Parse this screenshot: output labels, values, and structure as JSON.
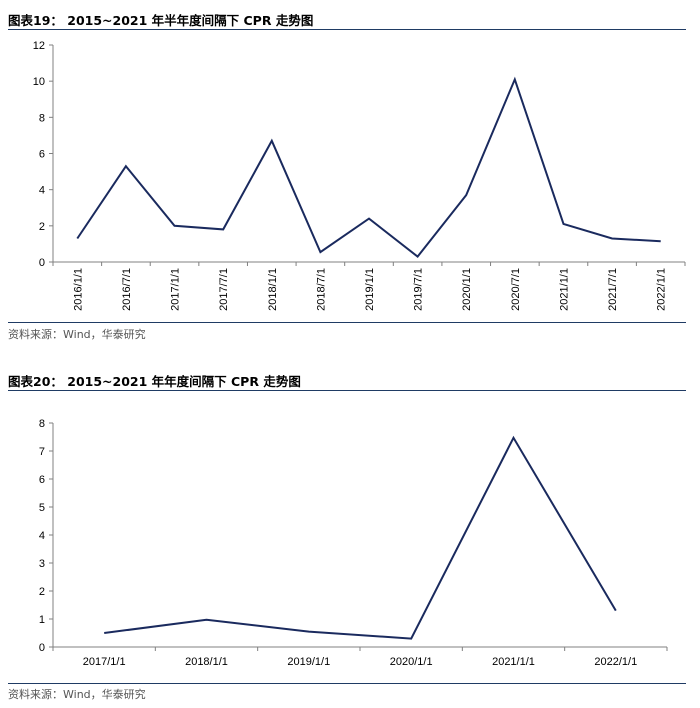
{
  "charts": [
    {
      "title": "图表19：  2015~2021 年半年度间隔下 CPR 走势图",
      "source": "资料来源：Wind，华泰研究"
    },
    {
      "title": "图表20：  2015~2021 年年度间隔下 CPR 走势图",
      "source": "资料来源：Wind，华泰研究"
    }
  ],
  "chart_data": [
    {
      "type": "line",
      "title": "图表19：  2015~2021 年半年度间隔下 CPR 走势图",
      "categories": [
        "2016/1/1",
        "2016/7/1",
        "2017/1/1",
        "2017/7/1",
        "2018/1/1",
        "2018/7/1",
        "2019/1/1",
        "2019/7/1",
        "2020/1/1",
        "2020/7/1",
        "2021/1/1",
        "2021/7/1",
        "2022/1/1"
      ],
      "series": [
        {
          "values": [
            1.3,
            5.3,
            2.0,
            1.8,
            6.7,
            0.55,
            2.4,
            0.3,
            3.7,
            10.1,
            2.1,
            1.3,
            1.15
          ]
        }
      ],
      "ylim": [
        0,
        12
      ],
      "yticks": [
        "0",
        "2",
        "4",
        "6",
        "8",
        "10",
        "12"
      ],
      "grid": false,
      "line_color": "#1a2a5e"
    },
    {
      "type": "line",
      "title": "图表20：  2015~2021 年年度间隔下 CPR 走势图",
      "categories": [
        "2017/1/1",
        "2018/1/1",
        "2019/1/1",
        "2020/1/1",
        "2021/1/1",
        "2022/1/1"
      ],
      "series": [
        {
          "values": [
            0.5,
            0.97,
            0.55,
            0.3,
            7.47,
            1.3
          ]
        }
      ],
      "ylim": [
        0,
        8
      ],
      "yticks": [
        "0",
        "1",
        "2",
        "3",
        "4",
        "5",
        "6",
        "7",
        "8"
      ],
      "grid": false,
      "line_color": "#1a2a5e"
    }
  ]
}
